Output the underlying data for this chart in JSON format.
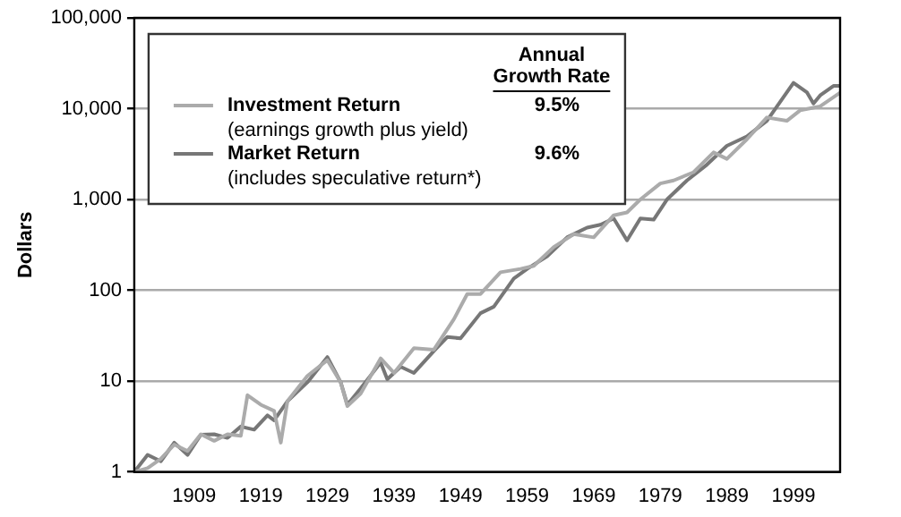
{
  "chart_data": {
    "type": "line",
    "ylabel": "Dollars",
    "log": "y",
    "grid": "y",
    "legend": "top left",
    "marker": "none",
    "line_style": "solid",
    "xlim": [
      1900,
      2006
    ],
    "xticks": [
      1909,
      1919,
      1929,
      1939,
      1949,
      1959,
      1969,
      1979,
      1989,
      1999
    ],
    "ylim": [
      1,
      100000
    ],
    "yticks": [
      {
        "value": 1,
        "label": "1"
      },
      {
        "value": 10,
        "label": "10"
      },
      {
        "value": 100,
        "label": "100"
      },
      {
        "value": 1000,
        "label": "1,000"
      },
      {
        "value": 10000,
        "label": "10,000"
      },
      {
        "value": 100000,
        "label": "100,000"
      }
    ],
    "annotations": [
      "Annual\nGrowth Rate",
      "9.5%",
      "(earnings growth plus yield)",
      "9.6%",
      "(includes speculative return*)"
    ],
    "series": [
      {
        "name": "Investment Return",
        "color": "#ababab",
        "x": [
          1900,
          1902,
          1904,
          1906,
          1908,
          1910,
          1912,
          1914,
          1916,
          1917,
          1919,
          1921,
          1922,
          1923,
          1926,
          1929,
          1931,
          1932,
          1934,
          1937,
          1939,
          1942,
          1945,
          1948,
          1950,
          1952,
          1955,
          1958,
          1960,
          1963,
          1966,
          1969,
          1972,
          1974,
          1976,
          1979,
          1981,
          1984,
          1987,
          1989,
          1992,
          1995,
          1998,
          2000,
          2003,
          2006
        ],
        "values": [
          1,
          1.1,
          1.4,
          2.0,
          1.7,
          2.6,
          2.2,
          2.6,
          2.5,
          7.0,
          5.5,
          4.7,
          2.1,
          6,
          11.4,
          17,
          9.7,
          5.3,
          7.3,
          17.8,
          12.3,
          23,
          22.2,
          48,
          91,
          91,
          158,
          172,
          186,
          300,
          415,
          383,
          670,
          720,
          1000,
          1500,
          1620,
          2000,
          3300,
          2800,
          4600,
          8000,
          7350,
          9600,
          10600,
          15000
        ]
      },
      {
        "name": "Market Return",
        "color": "#777777",
        "x": [
          1900,
          1902,
          1904,
          1906,
          1908,
          1910,
          1912,
          1914,
          1916,
          1918,
          1920,
          1921,
          1923,
          1926,
          1929,
          1931,
          1932,
          1934,
          1937,
          1938,
          1940,
          1942,
          1945,
          1947,
          1949,
          1952,
          1954,
          1957,
          1959,
          1962,
          1965,
          1968,
          1970,
          1972,
          1974,
          1976,
          1978,
          1980,
          1983,
          1986,
          1989,
          1992,
          1995,
          1997,
          1999,
          2001,
          2002,
          2003,
          2005,
          2006
        ],
        "values": [
          1,
          1.54,
          1.31,
          2.1,
          1.54,
          2.57,
          2.6,
          2.37,
          3.16,
          2.92,
          4.2,
          3.7,
          6.0,
          9.7,
          18.4,
          9.7,
          5.5,
          8.3,
          16,
          10.5,
          14.4,
          12.3,
          21.5,
          30.6,
          29.6,
          56,
          66,
          135,
          172,
          237,
          383,
          490,
          527,
          618,
          355,
          618,
          600,
          1000,
          1620,
          2420,
          3900,
          4950,
          7350,
          11900,
          19300,
          15200,
          11400,
          14000,
          17800,
          17800
        ]
      }
    ]
  }
}
